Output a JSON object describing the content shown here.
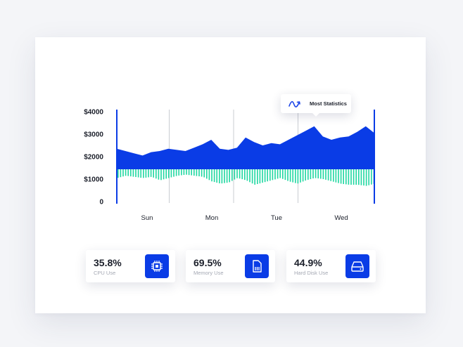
{
  "chart_data": {
    "type": "area",
    "y_tick_labels": [
      "$4000",
      "$3000",
      "$2000",
      "$1000",
      "0"
    ],
    "ylim": [
      0,
      4000
    ],
    "x_tick_labels": [
      "Sun",
      "Mon",
      "Tue",
      "Wed"
    ],
    "series": [
      {
        "color": "#0a3ce6",
        "values": [
          2350,
          2250,
          2150,
          2050,
          2200,
          2250,
          2350,
          2300,
          2250,
          2400,
          2550,
          2750,
          2350,
          2300,
          2400,
          2850,
          2650,
          2500,
          2600,
          2550,
          2750,
          2950,
          3150,
          3350,
          2900,
          2750,
          2850,
          2900,
          3100,
          3350,
          3050
        ]
      },
      {
        "color": "#1ed7a0",
        "values": [
          1050,
          1150,
          1100,
          1050,
          1100,
          950,
          1050,
          1150,
          1200,
          1150,
          1100,
          900,
          800,
          850,
          1050,
          950,
          750,
          850,
          950,
          1050,
          900,
          800,
          950,
          1050,
          1000,
          900,
          800,
          750,
          750,
          700,
          800
        ]
      }
    ]
  },
  "tooltip": {
    "label": "Most Statistics",
    "icon": "trend-squiggle-icon",
    "icon_color": "#1a44e8"
  },
  "stats": [
    {
      "value": "35.8%",
      "label": "CPU Use",
      "icon": "cpu-chip-icon"
    },
    {
      "value": "69.5%",
      "label": "Memory Use",
      "icon": "memory-sd-card-icon"
    },
    {
      "value": "44.9%",
      "label": "Hard Disk Use",
      "icon": "hard-disk-icon"
    }
  ],
  "colors": {
    "accent": "#0a3ce6",
    "mint": "#1ed7a0",
    "card": "#ffffff"
  }
}
